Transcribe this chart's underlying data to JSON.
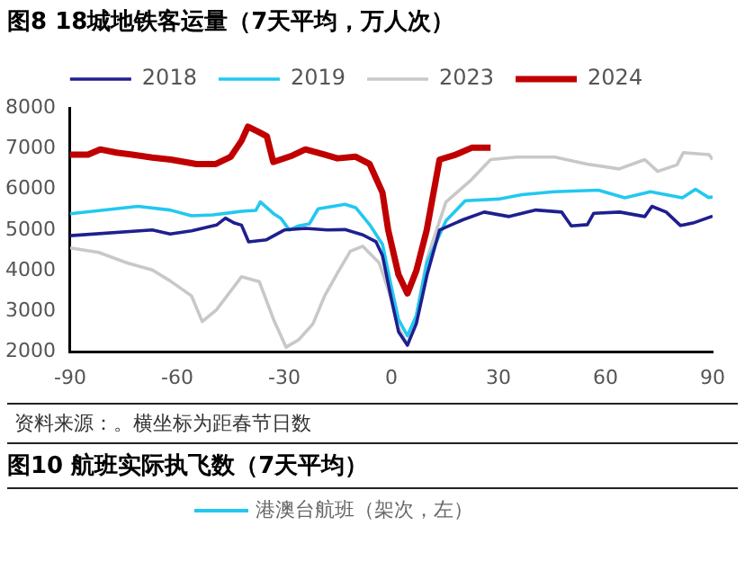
{
  "chart_data": [
    {
      "type": "line",
      "title": "图8 18城地铁客运量（7天平均，万人次）",
      "xlim": [
        -90,
        90
      ],
      "xticks": [
        -90,
        -60,
        -30,
        0,
        30,
        60,
        90
      ],
      "ylim": [
        2000,
        8000
      ],
      "yticks": [
        2000,
        3000,
        4000,
        5000,
        6000,
        7000,
        8000
      ],
      "grid": false,
      "legend": "top",
      "marker": "none",
      "line_style": "solid",
      "annotations": [
        "资料来源：。横坐标为距春节日数"
      ],
      "series": [
        {
          "name": "2018",
          "color": "#1f1f8f",
          "x": [
            -90,
            -67,
            -62,
            -56,
            -49,
            -46.5,
            -44,
            -42,
            -40,
            -35,
            -30,
            -24,
            -18,
            -13,
            -8,
            -4.3,
            -2.5,
            0,
            2,
            4.5,
            7,
            10,
            13.5,
            20,
            26,
            33,
            40.5,
            47.7,
            50.4,
            54.9,
            56.7,
            64,
            71,
            73,
            77,
            81,
            84.5,
            90
          ],
          "values": [
            4860,
            5000,
            4900,
            4980,
            5120,
            5290,
            5170,
            5120,
            4710,
            4760,
            5000,
            5040,
            5000,
            5010,
            4880,
            4710,
            4370,
            3300,
            2500,
            2170,
            2700,
            3900,
            5000,
            5250,
            5440,
            5330,
            5490,
            5440,
            5100,
            5130,
            5410,
            5440,
            5330,
            5580,
            5440,
            5110,
            5170,
            5340
          ]
        },
        {
          "name": "2019",
          "color": "#22c8f0",
          "x": [
            -90,
            -71,
            -62,
            -56,
            -50,
            -42,
            -38,
            -36.7,
            -33,
            -31,
            -28.6,
            -26,
            -23,
            -20.5,
            -13,
            -10,
            -6,
            -2.5,
            0,
            2,
            4.5,
            7,
            10,
            15.3,
            20.7,
            30,
            36.6,
            45.6,
            58,
            65.4,
            72.6,
            81.5,
            85.2,
            88.8,
            90
          ],
          "values": [
            5400,
            5580,
            5490,
            5350,
            5370,
            5460,
            5480,
            5690,
            5400,
            5290,
            5000,
            5100,
            5150,
            5520,
            5630,
            5550,
            5120,
            4650,
            3600,
            2800,
            2400,
            2900,
            4200,
            5230,
            5720,
            5760,
            5870,
            5940,
            5980,
            5790,
            5940,
            5790,
            6000,
            5800,
            5810
          ]
        },
        {
          "name": "2023",
          "color": "#c8c8c8",
          "x": [
            -90,
            -82,
            -74,
            -67,
            -62,
            -56,
            -53,
            -49,
            -42,
            -37,
            -33,
            -29.5,
            -26,
            -22,
            -18.7,
            -15,
            -11.5,
            -8,
            -3.4,
            0,
            2,
            4.5,
            7,
            10,
            15.3,
            22,
            27.8,
            35,
            45.8,
            54.8,
            63.8,
            71,
            74.6,
            80,
            81.8,
            89,
            90
          ],
          "values": [
            4560,
            4450,
            4190,
            4020,
            3750,
            3380,
            2750,
            3040,
            3850,
            3730,
            2800,
            2120,
            2300,
            2690,
            3380,
            3960,
            4480,
            4600,
            4190,
            3300,
            2600,
            2170,
            2900,
            4300,
            5690,
            6200,
            6730,
            6790,
            6790,
            6620,
            6500,
            6730,
            6440,
            6600,
            6900,
            6850,
            6730
          ]
        },
        {
          "name": "2024",
          "color": "#c00000",
          "x": [
            -90,
            -85,
            -81.6,
            -77,
            -72.6,
            -67,
            -61.8,
            -54.6,
            -49.2,
            -45,
            -42,
            -40.2,
            -37,
            -34.9,
            -33.1,
            -27.7,
            -24.1,
            -19,
            -15.1,
            -10,
            -6.1,
            -2.5,
            -0.9,
            2,
            4.5,
            7,
            9.9,
            13.5,
            18,
            22.5,
            27.8
          ],
          "values": [
            6850,
            6850,
            6980,
            6900,
            6850,
            6780,
            6730,
            6620,
            6620,
            6800,
            7190,
            7540,
            7400,
            7300,
            6670,
            6830,
            6980,
            6860,
            6760,
            6800,
            6620,
            5920,
            5000,
            3900,
            3440,
            4000,
            5000,
            6730,
            6850,
            7020,
            7020
          ]
        }
      ]
    },
    {
      "type": "other",
      "title": "图10 航班实际执飞数（7天平均）",
      "annotations": [
        "港澳台航班（架次，左）"
      ]
    }
  ]
}
